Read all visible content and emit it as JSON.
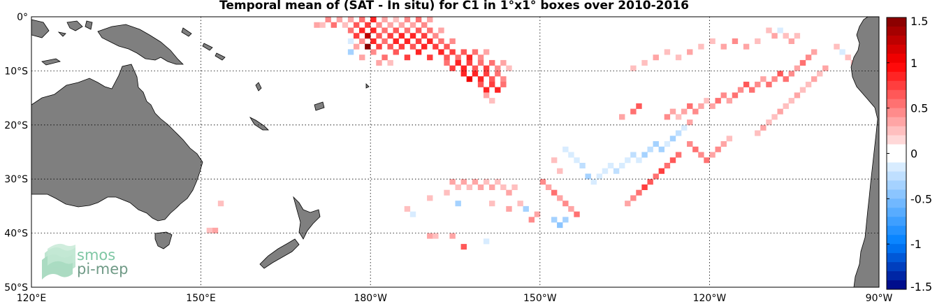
{
  "title": "Temporal mean of (SAT - In situ) for C1 in 1°x1° boxes over 2010-2016",
  "map": {
    "lon_range": [
      120,
      270
    ],
    "lat_range": [
      -50,
      0
    ],
    "lon_ticks": [
      {
        "lon": 120,
        "label": "120°E"
      },
      {
        "lon": 150,
        "label": "150°E"
      },
      {
        "lon": 180,
        "label": "180°W"
      },
      {
        "lon": 210,
        "label": "150°W"
      },
      {
        "lon": 240,
        "label": "120°W"
      },
      {
        "lon": 270,
        "label": "90°W"
      }
    ],
    "lat_ticks": [
      {
        "lat": 0,
        "label": "0°"
      },
      {
        "lat": -10,
        "label": "10°S"
      },
      {
        "lat": -20,
        "label": "20°S"
      },
      {
        "lat": -30,
        "label": "30°S"
      },
      {
        "lat": -40,
        "label": "40°S"
      },
      {
        "lat": -50,
        "label": "50°S"
      }
    ],
    "grid": true,
    "land_color": "#7f7f7f"
  },
  "colorbar": {
    "range": [
      -1.5,
      1.5
    ],
    "ticks": [
      "1.5",
      "1",
      "0.5",
      "0",
      "-0.5",
      "-1",
      "-1.5"
    ],
    "tick_values": [
      1.5,
      1,
      0.5,
      0,
      -0.5,
      -1,
      -1.5
    ],
    "placement": "right"
  },
  "logo": {
    "line1": "smos",
    "line2": "pi-mep"
  },
  "chart_data": {
    "type": "heatmap",
    "title": "Temporal mean of (SAT - In situ) for C1 in 1°x1° boxes over 2010-2016",
    "xlabel": "",
    "ylabel": "",
    "cell_size_deg": 1,
    "cells": [
      [
        170,
        -2,
        0.3
      ],
      [
        171,
        -2,
        0.25
      ],
      [
        172,
        -1,
        0.4
      ],
      [
        173,
        -2,
        0.5
      ],
      [
        174,
        -1,
        0.3
      ],
      [
        175,
        -2,
        0.2
      ],
      [
        176,
        -1,
        0.35
      ],
      [
        177,
        -2,
        0.6
      ],
      [
        178,
        -1,
        0.5
      ],
      [
        179,
        -2,
        0.7
      ],
      [
        180,
        -1,
        0.8
      ],
      [
        181,
        -2,
        0.4
      ],
      [
        182,
        -1,
        0.3
      ],
      [
        183,
        -2,
        0.35
      ],
      [
        184,
        -1,
        0.25
      ],
      [
        185,
        -2,
        0.3
      ],
      [
        186,
        -1,
        0.45
      ],
      [
        187,
        -2,
        0.35
      ],
      [
        188,
        -1,
        0.5
      ],
      [
        189,
        -2,
        0.4
      ],
      [
        190,
        -1,
        0.3
      ],
      [
        176,
        -3,
        0.5
      ],
      [
        177,
        -4,
        0.7
      ],
      [
        178,
        -3,
        0.9
      ],
      [
        179,
        -4,
        1.2
      ],
      [
        180,
        -3,
        0.8
      ],
      [
        181,
        -4,
        0.6
      ],
      [
        182,
        -3,
        0.5
      ],
      [
        183,
        -4,
        0.7
      ],
      [
        184,
        -3,
        0.6
      ],
      [
        185,
        -4,
        0.8
      ],
      [
        186,
        -3,
        0.5
      ],
      [
        187,
        -4,
        0.9
      ],
      [
        188,
        -3,
        0.6
      ],
      [
        189,
        -4,
        0.7
      ],
      [
        190,
        -3,
        0.5
      ],
      [
        191,
        -4,
        0.4
      ],
      [
        192,
        -3,
        0.3
      ],
      [
        176,
        -5,
        -0.2
      ],
      [
        177,
        -6,
        0.3
      ],
      [
        178,
        -5,
        0.4
      ],
      [
        179,
        -6,
        1.4
      ],
      [
        180,
        -5,
        0.9
      ],
      [
        181,
        -6,
        0.7
      ],
      [
        182,
        -5,
        0.5
      ],
      [
        183,
        -6,
        0.6
      ],
      [
        184,
        -5,
        0.8
      ],
      [
        185,
        -6,
        0.7
      ],
      [
        186,
        -5,
        0.9
      ],
      [
        187,
        -6,
        0.6
      ],
      [
        188,
        -5,
        0.7
      ],
      [
        189,
        -6,
        0.8
      ],
      [
        190,
        -5,
        0.9
      ],
      [
        191,
        -6,
        0.7
      ],
      [
        192,
        -5,
        0.5
      ],
      [
        193,
        -6,
        0.6
      ],
      [
        194,
        -5,
        0.4
      ],
      [
        176,
        -7,
        -0.3
      ],
      [
        178,
        -8,
        0.3
      ],
      [
        180,
        -7,
        0.4
      ],
      [
        182,
        -8,
        0.5
      ],
      [
        184,
        -7,
        0.6
      ],
      [
        186,
        -8,
        0.7
      ],
      [
        188,
        -7,
        0.8
      ],
      [
        190,
        -8,
        0.7
      ],
      [
        192,
        -7,
        0.8
      ],
      [
        193,
        -8,
        0.6
      ],
      [
        194,
        -7,
        0.7
      ],
      [
        195,
        -8,
        0.5
      ],
      [
        196,
        -7,
        0.6
      ],
      [
        197,
        -8,
        0.8
      ],
      [
        198,
        -7,
        0.5
      ],
      [
        199,
        -8,
        0.4
      ],
      [
        200,
        -7,
        0.3
      ],
      [
        181,
        -9,
        0.3
      ],
      [
        183,
        -9,
        0.2
      ],
      [
        193,
        -9,
        0.5
      ],
      [
        194,
        -10,
        0.7
      ],
      [
        195,
        -9,
        0.8
      ],
      [
        196,
        -10,
        0.9
      ],
      [
        197,
        -9,
        0.7
      ],
      [
        198,
        -10,
        0.6
      ],
      [
        199,
        -9,
        0.5
      ],
      [
        200,
        -10,
        0.7
      ],
      [
        201,
        -9,
        0.5
      ],
      [
        202,
        -10,
        0.4
      ],
      [
        203,
        -9,
        0.3
      ],
      [
        204,
        -10,
        0.25
      ],
      [
        196,
        -11,
        0.9
      ],
      [
        197,
        -12,
        1.0
      ],
      [
        198,
        -11,
        0.8
      ],
      [
        199,
        -12,
        0.9
      ],
      [
        200,
        -11,
        0.7
      ],
      [
        201,
        -12,
        0.6
      ],
      [
        202,
        -11,
        0.5
      ],
      [
        203,
        -12,
        0.4
      ],
      [
        199,
        -13,
        0.6
      ],
      [
        200,
        -14,
        0.8
      ],
      [
        201,
        -13,
        0.7
      ],
      [
        202,
        -14,
        0.9
      ],
      [
        203,
        -13,
        0.5
      ],
      [
        200,
        -15,
        0.3
      ],
      [
        201,
        -16,
        0.25
      ],
      [
        250,
        -3,
        0.25
      ],
      [
        251,
        -4,
        0.3
      ],
      [
        252,
        -3,
        -0.15
      ],
      [
        253,
        -4,
        0.2
      ],
      [
        254,
        -5,
        0.3
      ],
      [
        255,
        -4,
        0.25
      ],
      [
        248,
        -5,
        0.2
      ],
      [
        246,
        -6,
        0.3
      ],
      [
        244,
        -5,
        0.4
      ],
      [
        242,
        -6,
        0.3
      ],
      [
        240,
        -5,
        0.25
      ],
      [
        238,
        -6,
        0.2
      ],
      [
        236,
        -7,
        0.3
      ],
      [
        234,
        -8,
        0.25
      ],
      [
        232,
        -7,
        0.2
      ],
      [
        230,
        -8,
        0.3
      ],
      [
        228,
        -9,
        0.25
      ],
      [
        226,
        -10,
        0.2
      ],
      [
        258,
        -7,
        0.3
      ],
      [
        257,
        -8,
        0.4
      ],
      [
        256,
        -9,
        0.5
      ],
      [
        255,
        -10,
        0.3
      ],
      [
        254,
        -11,
        0.4
      ],
      [
        253,
        -12,
        0.5
      ],
      [
        252,
        -11,
        0.6
      ],
      [
        251,
        -12,
        0.4
      ],
      [
        250,
        -13,
        0.5
      ],
      [
        249,
        -12,
        0.3
      ],
      [
        248,
        -13,
        0.4
      ],
      [
        247,
        -14,
        0.5
      ],
      [
        246,
        -13,
        0.6
      ],
      [
        245,
        -14,
        0.4
      ],
      [
        244,
        -15,
        0.5
      ],
      [
        243,
        -16,
        0.3
      ],
      [
        242,
        -15,
        0.4
      ],
      [
        241,
        -16,
        0.5
      ],
      [
        240,
        -17,
        0.3
      ],
      [
        239,
        -16,
        0.25
      ],
      [
        238,
        -17,
        0.3
      ],
      [
        237,
        -18,
        0.4
      ],
      [
        236,
        -17,
        0.5
      ],
      [
        235,
        -18,
        0.3
      ],
      [
        234,
        -19,
        0.25
      ],
      [
        233,
        -18,
        0.3
      ],
      [
        232,
        -19,
        0.4
      ],
      [
        262,
        -6,
        0.2
      ],
      [
        263,
        -7,
        -0.2
      ],
      [
        264,
        -8,
        0.25
      ],
      [
        265,
        -9,
        0.2
      ],
      [
        260,
        -10,
        0.3
      ],
      [
        259,
        -11,
        0.25
      ],
      [
        258,
        -12,
        0.3
      ],
      [
        257,
        -13,
        0.2
      ],
      [
        256,
        -14,
        0.25
      ],
      [
        255,
        -15,
        0.3
      ],
      [
        254,
        -16,
        0.2
      ],
      [
        253,
        -17,
        0.25
      ],
      [
        252,
        -18,
        0.3
      ],
      [
        251,
        -19,
        0.2
      ],
      [
        250,
        -20,
        0.25
      ],
      [
        249,
        -21,
        0.3
      ],
      [
        248,
        -22,
        0.2
      ],
      [
        226,
        -18,
        0.5
      ],
      [
        227,
        -17,
        0.6
      ],
      [
        224,
        -19,
        0.3
      ],
      [
        236,
        -20,
        0.3
      ],
      [
        235,
        -21,
        -0.2
      ],
      [
        234,
        -22,
        -0.25
      ],
      [
        233,
        -23,
        -0.3
      ],
      [
        232,
        -24,
        -0.2
      ],
      [
        231,
        -25,
        -0.3
      ],
      [
        230,
        -24,
        -0.35
      ],
      [
        229,
        -25,
        -0.25
      ],
      [
        228,
        -26,
        -0.3
      ],
      [
        227,
        -27,
        -0.2
      ],
      [
        226,
        -26,
        -0.25
      ],
      [
        225,
        -27,
        -0.15
      ],
      [
        224,
        -28,
        -0.2
      ],
      [
        223,
        -29,
        -0.25
      ],
      [
        222,
        -28,
        -0.15
      ],
      [
        221,
        -29,
        -0.2
      ],
      [
        220,
        -30,
        -0.1
      ],
      [
        236,
        -24,
        0.4
      ],
      [
        237,
        -25,
        0.5
      ],
      [
        238,
        -26,
        0.4
      ],
      [
        239,
        -27,
        0.5
      ],
      [
        240,
        -26,
        0.3
      ],
      [
        241,
        -25,
        0.4
      ],
      [
        242,
        -24,
        0.3
      ],
      [
        243,
        -23,
        0.25
      ],
      [
        234,
        -26,
        0.5
      ],
      [
        233,
        -27,
        0.6
      ],
      [
        232,
        -28,
        0.5
      ],
      [
        231,
        -29,
        0.7
      ],
      [
        230,
        -30,
        0.5
      ],
      [
        229,
        -31,
        0.6
      ],
      [
        228,
        -32,
        0.7
      ],
      [
        227,
        -33,
        0.5
      ],
      [
        226,
        -34,
        0.4
      ],
      [
        225,
        -35,
        0.3
      ],
      [
        214,
        -25,
        -0.2
      ],
      [
        215,
        -26,
        -0.15
      ],
      [
        216,
        -27,
        -0.2
      ],
      [
        217,
        -28,
        -0.25
      ],
      [
        212,
        -27,
        0.25
      ],
      [
        213,
        -29,
        0.2
      ],
      [
        218,
        -30,
        -0.3
      ],
      [
        219,
        -31,
        -0.2
      ],
      [
        210,
        -31,
        0.4
      ],
      [
        211,
        -32,
        0.3
      ],
      [
        212,
        -33,
        0.5
      ],
      [
        213,
        -34,
        0.3
      ],
      [
        214,
        -35,
        0.4
      ],
      [
        215,
        -36,
        0.3
      ],
      [
        216,
        -37,
        0.5
      ],
      [
        212,
        -38,
        -0.4
      ],
      [
        213,
        -39,
        -0.5
      ],
      [
        214,
        -38,
        -0.3
      ],
      [
        209,
        -37,
        0.3
      ],
      [
        208,
        -38,
        0.4
      ],
      [
        207,
        -36,
        -0.3
      ],
      [
        194,
        -31,
        0.3
      ],
      [
        195,
        -32,
        0.25
      ],
      [
        196,
        -31,
        0.3
      ],
      [
        197,
        -32,
        0.2
      ],
      [
        198,
        -31,
        0.35
      ],
      [
        199,
        -32,
        0.3
      ],
      [
        200,
        -31,
        0.25
      ],
      [
        201,
        -32,
        0.3
      ],
      [
        202,
        -31,
        0.2
      ],
      [
        203,
        -32,
        0.25
      ],
      [
        204,
        -33,
        0.3
      ],
      [
        205,
        -32,
        0.2
      ],
      [
        193,
        -33,
        0.25
      ],
      [
        190,
        -34,
        0.2
      ],
      [
        186,
        -36,
        0.25
      ],
      [
        187,
        -37,
        -0.2
      ],
      [
        195,
        -35,
        -0.3
      ],
      [
        201,
        -35,
        0.2
      ],
      [
        204,
        -36,
        0.3
      ],
      [
        206,
        -35,
        0.25
      ],
      [
        190,
        -41,
        0.3
      ],
      [
        191,
        -41,
        0.25
      ],
      [
        194,
        -41,
        0.3
      ],
      [
        196,
        -43,
        0.6
      ],
      [
        200,
        -42,
        -0.15
      ],
      [
        153,
        -35,
        0.25
      ],
      [
        152,
        -40,
        0.3
      ],
      [
        151,
        -40,
        0.25
      ]
    ]
  }
}
